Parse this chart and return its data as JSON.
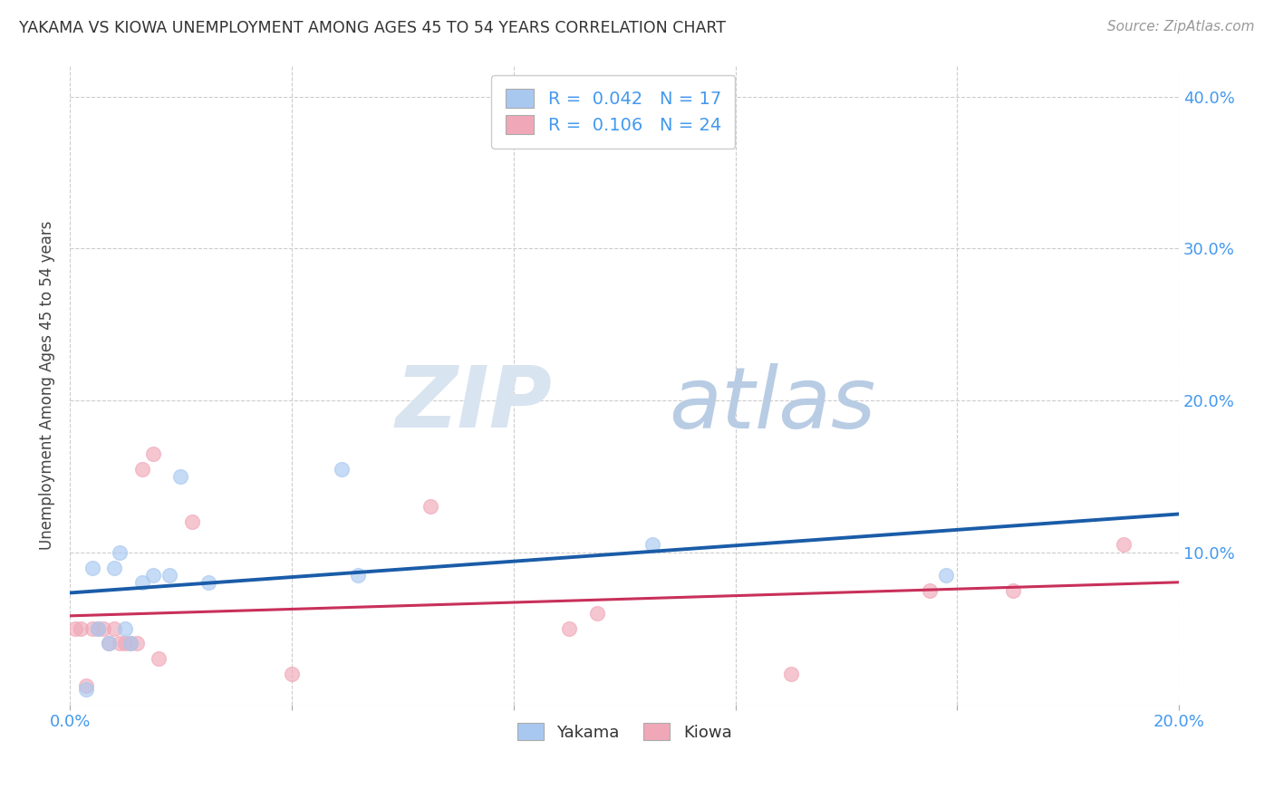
{
  "title": "YAKAMA VS KIOWA UNEMPLOYMENT AMONG AGES 45 TO 54 YEARS CORRELATION CHART",
  "source": "Source: ZipAtlas.com",
  "ylabel": "Unemployment Among Ages 45 to 54 years",
  "xlim": [
    0.0,
    0.2
  ],
  "ylim": [
    0.0,
    0.42
  ],
  "xticks": [
    0.0,
    0.04,
    0.08,
    0.12,
    0.16,
    0.2
  ],
  "yticks": [
    0.0,
    0.1,
    0.2,
    0.3,
    0.4
  ],
  "background_color": "#ffffff",
  "grid_color": "#cccccc",
  "watermark_zip": "ZIP",
  "watermark_atlas": "atlas",
  "legend": {
    "yakama_R": "0.042",
    "yakama_N": "17",
    "kiowa_R": "0.106",
    "kiowa_N": "24"
  },
  "yakama_color": "#a8c8f0",
  "kiowa_color": "#f0a8b8",
  "yakama_line_color": "#1a5ca8",
  "kiowa_line_color": "#c8305a",
  "yakama_x": [
    0.003,
    0.004,
    0.005,
    0.007,
    0.008,
    0.009,
    0.01,
    0.011,
    0.013,
    0.015,
    0.018,
    0.02,
    0.025,
    0.049,
    0.052,
    0.105,
    0.158
  ],
  "yakama_y": [
    0.01,
    0.09,
    0.05,
    0.04,
    0.09,
    0.1,
    0.05,
    0.04,
    0.08,
    0.085,
    0.085,
    0.15,
    0.08,
    0.155,
    0.085,
    0.105,
    0.085
  ],
  "kiowa_x": [
    0.001,
    0.002,
    0.003,
    0.004,
    0.005,
    0.006,
    0.007,
    0.008,
    0.009,
    0.01,
    0.011,
    0.012,
    0.013,
    0.015,
    0.016,
    0.022,
    0.04,
    0.065,
    0.09,
    0.095,
    0.13,
    0.155,
    0.17,
    0.19
  ],
  "kiowa_y": [
    0.05,
    0.05,
    0.012,
    0.05,
    0.05,
    0.05,
    0.04,
    0.05,
    0.04,
    0.04,
    0.04,
    0.04,
    0.155,
    0.165,
    0.03,
    0.12,
    0.02,
    0.13,
    0.05,
    0.06,
    0.02,
    0.075,
    0.075,
    0.105
  ],
  "marker_size": 130,
  "marker_alpha": 0.65,
  "marker_lw": 1.0
}
